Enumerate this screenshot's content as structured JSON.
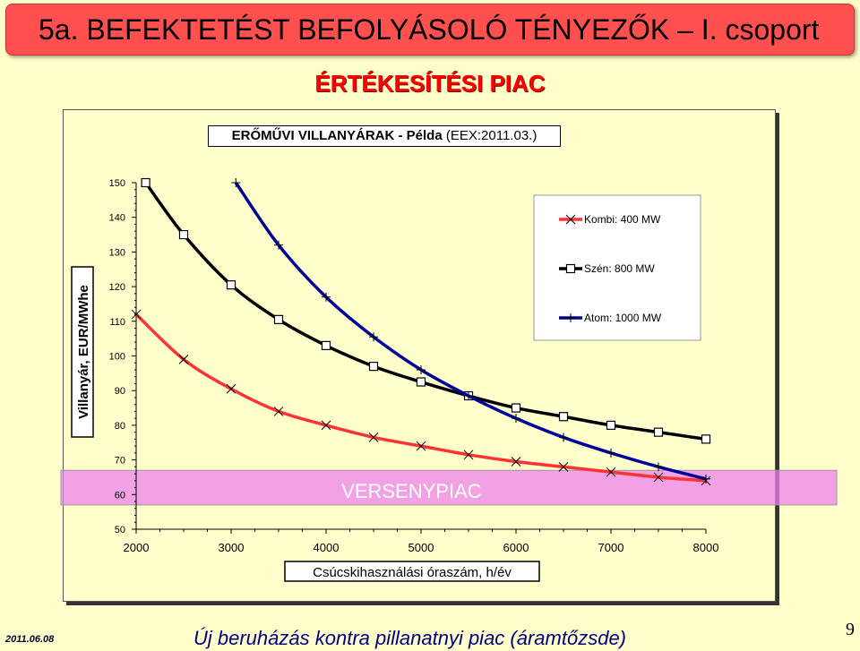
{
  "slide": {
    "title": "5a. BEFEKTETÉST BEFOLYÁSOLÓ TÉNYEZŐK – I. csoport",
    "subtitle": "ÉRTÉKESÍTÉSI PIAC",
    "footer_date": "2011.06.08",
    "footer_text": "Új beruházás kontra pillanatnyi piac (áramtőzsde)",
    "page_number": "9"
  },
  "chart_data": {
    "type": "line",
    "title_bold": "ERŐMŰVI VILLANYÁRAK - Példa",
    "title_normal": "(EEX:2011.03.)",
    "xlabel": "Csúcskihasználási óraszám,   h/év",
    "ylabel": "Villanyár,   EUR/MWhe",
    "xlim": [
      2000,
      8000
    ],
    "ylim": [
      50,
      150
    ],
    "xticks": [
      2000,
      3000,
      4000,
      5000,
      6000,
      7000,
      8000
    ],
    "yticks": [
      50,
      60,
      70,
      80,
      90,
      100,
      110,
      120,
      130,
      140,
      150
    ],
    "band": {
      "label": "VERSENYPIAC",
      "y_from": 57,
      "y_to": 67,
      "color": "#ee82ee"
    },
    "legend_position": "top-right",
    "series": [
      {
        "name": "Kombi: 400 MW",
        "color": "#ff3333",
        "marker": "x",
        "x": [
          2000,
          2500,
          3000,
          3500,
          4000,
          4500,
          5000,
          5500,
          6000,
          6500,
          7000,
          7500,
          8000
        ],
        "y": [
          112,
          99,
          90.5,
          84,
          80,
          76.5,
          74,
          71.5,
          69.5,
          68,
          66.5,
          65,
          64
        ]
      },
      {
        "name": "Szén: 800 MW",
        "color": "#000000",
        "marker": "square",
        "x": [
          2100,
          2500,
          3000,
          3500,
          4000,
          4500,
          5000,
          5500,
          6000,
          6500,
          7000,
          7500,
          8000
        ],
        "y": [
          150,
          135,
          120.5,
          110.5,
          103,
          97,
          92.5,
          88.5,
          85,
          82.5,
          80,
          78,
          76
        ]
      },
      {
        "name": "Atom: 1000 MW",
        "color": "#000099",
        "marker": "plus",
        "x": [
          3050,
          3500,
          4000,
          4500,
          5000,
          5500,
          6000,
          6500,
          7000,
          7500,
          8000
        ],
        "y": [
          150,
          132,
          117,
          105.5,
          96,
          88.5,
          82,
          76.5,
          72,
          68,
          64.5
        ]
      }
    ]
  }
}
